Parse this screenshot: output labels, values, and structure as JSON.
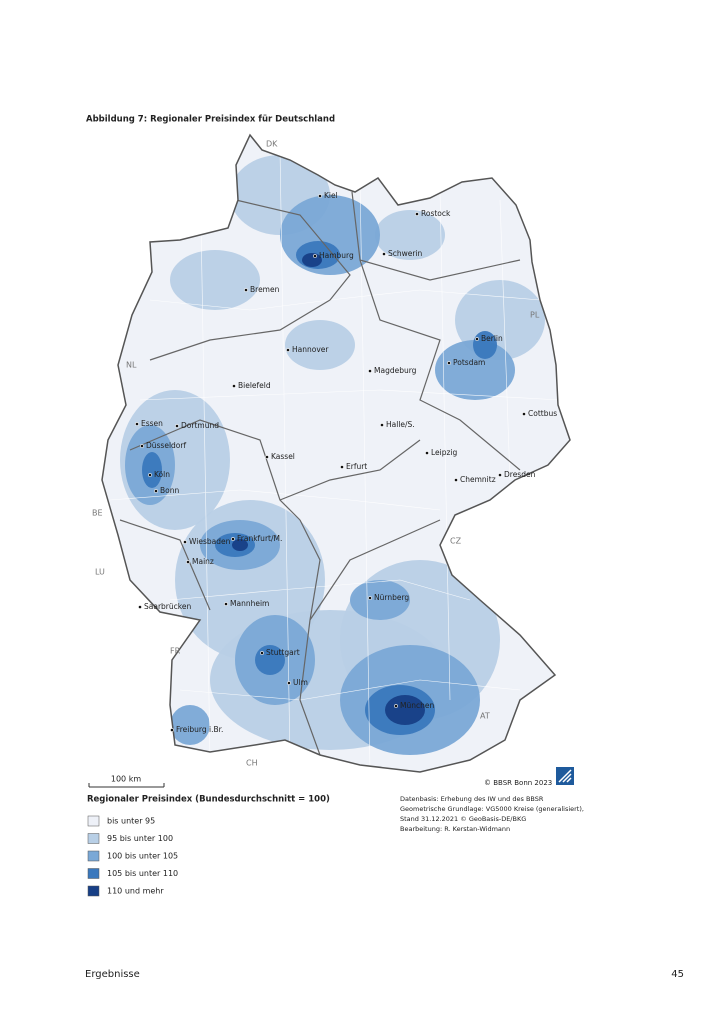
{
  "header": {
    "figure_title": "Abbildung 7: Regionaler Preisindex für Deutschland"
  },
  "map": {
    "countries": [
      "DK",
      "PL",
      "NL",
      "BE",
      "LU",
      "CZ",
      "FR",
      "AT",
      "CH"
    ],
    "cities": [
      "Kiel",
      "Rostock",
      "Hamburg",
      "Schwerin",
      "Bremen",
      "Berlin",
      "Potsdam",
      "Hannover",
      "Bielefeld",
      "Magdeburg",
      "Cottbus",
      "Essen",
      "Dortmund",
      "Halle/S.",
      "Leipzig",
      "Düsseldorf",
      "Kassel",
      "Köln",
      "Erfurt",
      "Dresden",
      "Chemnitz",
      "Bonn",
      "Wiesbaden",
      "Frankfurt/M.",
      "Mainz",
      "Nürnberg",
      "Saarbrücken",
      "Mannheim",
      "Stuttgart",
      "Ulm",
      "München",
      "Freiburg i.Br."
    ],
    "scale_bar": "100 km",
    "copyright": "© BBSR Bonn 2023"
  },
  "legend": {
    "title": "Regionaler Preisindex (Bundesdurchschnitt = 100)",
    "items": [
      {
        "label": "bis unter 95",
        "color": "#eef1f8"
      },
      {
        "label": "95 bis unter 100",
        "color": "#b8cfe6"
      },
      {
        "label": "100 bis unter 105",
        "color": "#7aa8d6"
      },
      {
        "label": "105 bis unter 110",
        "color": "#3a78bd"
      },
      {
        "label": "110 und mehr",
        "color": "#173f86"
      }
    ]
  },
  "source": [
    "Datenbasis: Erhebung des IW und des BBSR",
    "Geometrische Grundlage: VG5000 Kreise (generalisiert),",
    "Stand 31.12.2021 © GeoBasis-DE/BKG",
    "Bearbeitung: R. Kerstan-Widmann"
  ],
  "footer": {
    "section": "Ergebnisse",
    "page": "45"
  }
}
